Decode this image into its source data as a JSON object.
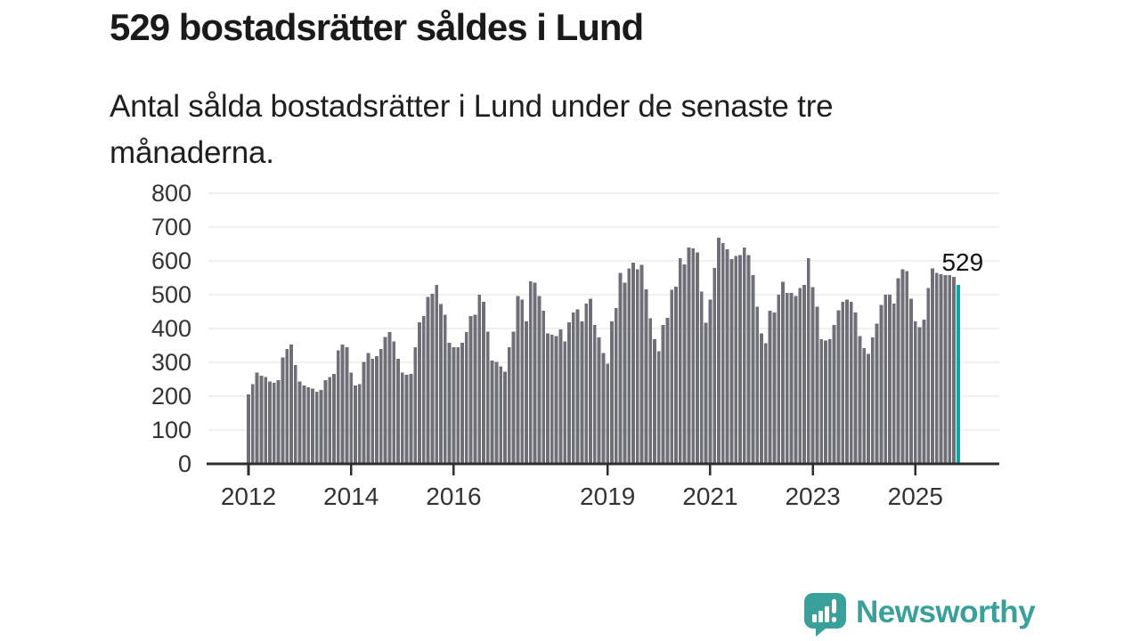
{
  "header": {
    "title": "529 bostadsrätter såldes i Lund",
    "subtitle": "Antal sålda bostadsrätter i Lund under de senaste tre månaderna."
  },
  "chart_data": {
    "type": "bar",
    "title": "529 bostadsrätter såldes i Lund",
    "subtitle": "Antal sålda bostadsrätter i Lund under de senaste tre månaderna.",
    "xlabel": "",
    "ylabel": "",
    "x_start": "2012-01",
    "x_interval": "monthly",
    "ylim": [
      0,
      800
    ],
    "y_ticks": [
      0,
      100,
      200,
      300,
      400,
      500,
      600,
      700,
      800
    ],
    "x_tick_years": [
      2012,
      2014,
      2016,
      2019,
      2021,
      2023,
      2025
    ],
    "grid": "horizontal",
    "legend": "none",
    "highlight_last": true,
    "highlight_label": "529",
    "values": [
      205,
      235,
      270,
      261,
      257,
      244,
      239,
      248,
      314,
      340,
      353,
      292,
      244,
      231,
      226,
      222,
      213,
      218,
      248,
      257,
      266,
      336,
      353,
      345,
      270,
      231,
      235,
      301,
      327,
      310,
      318,
      340,
      375,
      389,
      362,
      310,
      270,
      263,
      266,
      345,
      419,
      437,
      494,
      502,
      529,
      472,
      441,
      358,
      345,
      345,
      358,
      389,
      437,
      441,
      500,
      479,
      391,
      305,
      301,
      288,
      272,
      345,
      391,
      496,
      485,
      421,
      540,
      535,
      496,
      453,
      386,
      382,
      377,
      397,
      362,
      419,
      447,
      456,
      421,
      474,
      488,
      410,
      374,
      327,
      296,
      421,
      461,
      564,
      535,
      577,
      595,
      575,
      588,
      516,
      430,
      368,
      333,
      410,
      432,
      514,
      524,
      608,
      590,
      640,
      637,
      625,
      509,
      417,
      485,
      579,
      669,
      652,
      634,
      605,
      614,
      617,
      640,
      617,
      558,
      465,
      386,
      356,
      453,
      447,
      500,
      538,
      505,
      505,
      496,
      520,
      529,
      608,
      523,
      465,
      368,
      365,
      368,
      410,
      454,
      479,
      485,
      479,
      447,
      377,
      342,
      325,
      374,
      415,
      470,
      500,
      500,
      474,
      549,
      575,
      570,
      488,
      421,
      404,
      426,
      520,
      577,
      564,
      561,
      558,
      558,
      553,
      529
    ],
    "colors": {
      "bar": "#6f6f78",
      "highlight": "#0ca5a5",
      "grid": "#e2e2e2",
      "axis": "#2e2e2e",
      "tick_text": "#333333",
      "annotation_text": "#111111"
    }
  },
  "footer": {
    "brand": "Newsworthy",
    "brand_color": "#3aa19a",
    "logo_icon": "speech-bubble-bar-chart-icon"
  }
}
